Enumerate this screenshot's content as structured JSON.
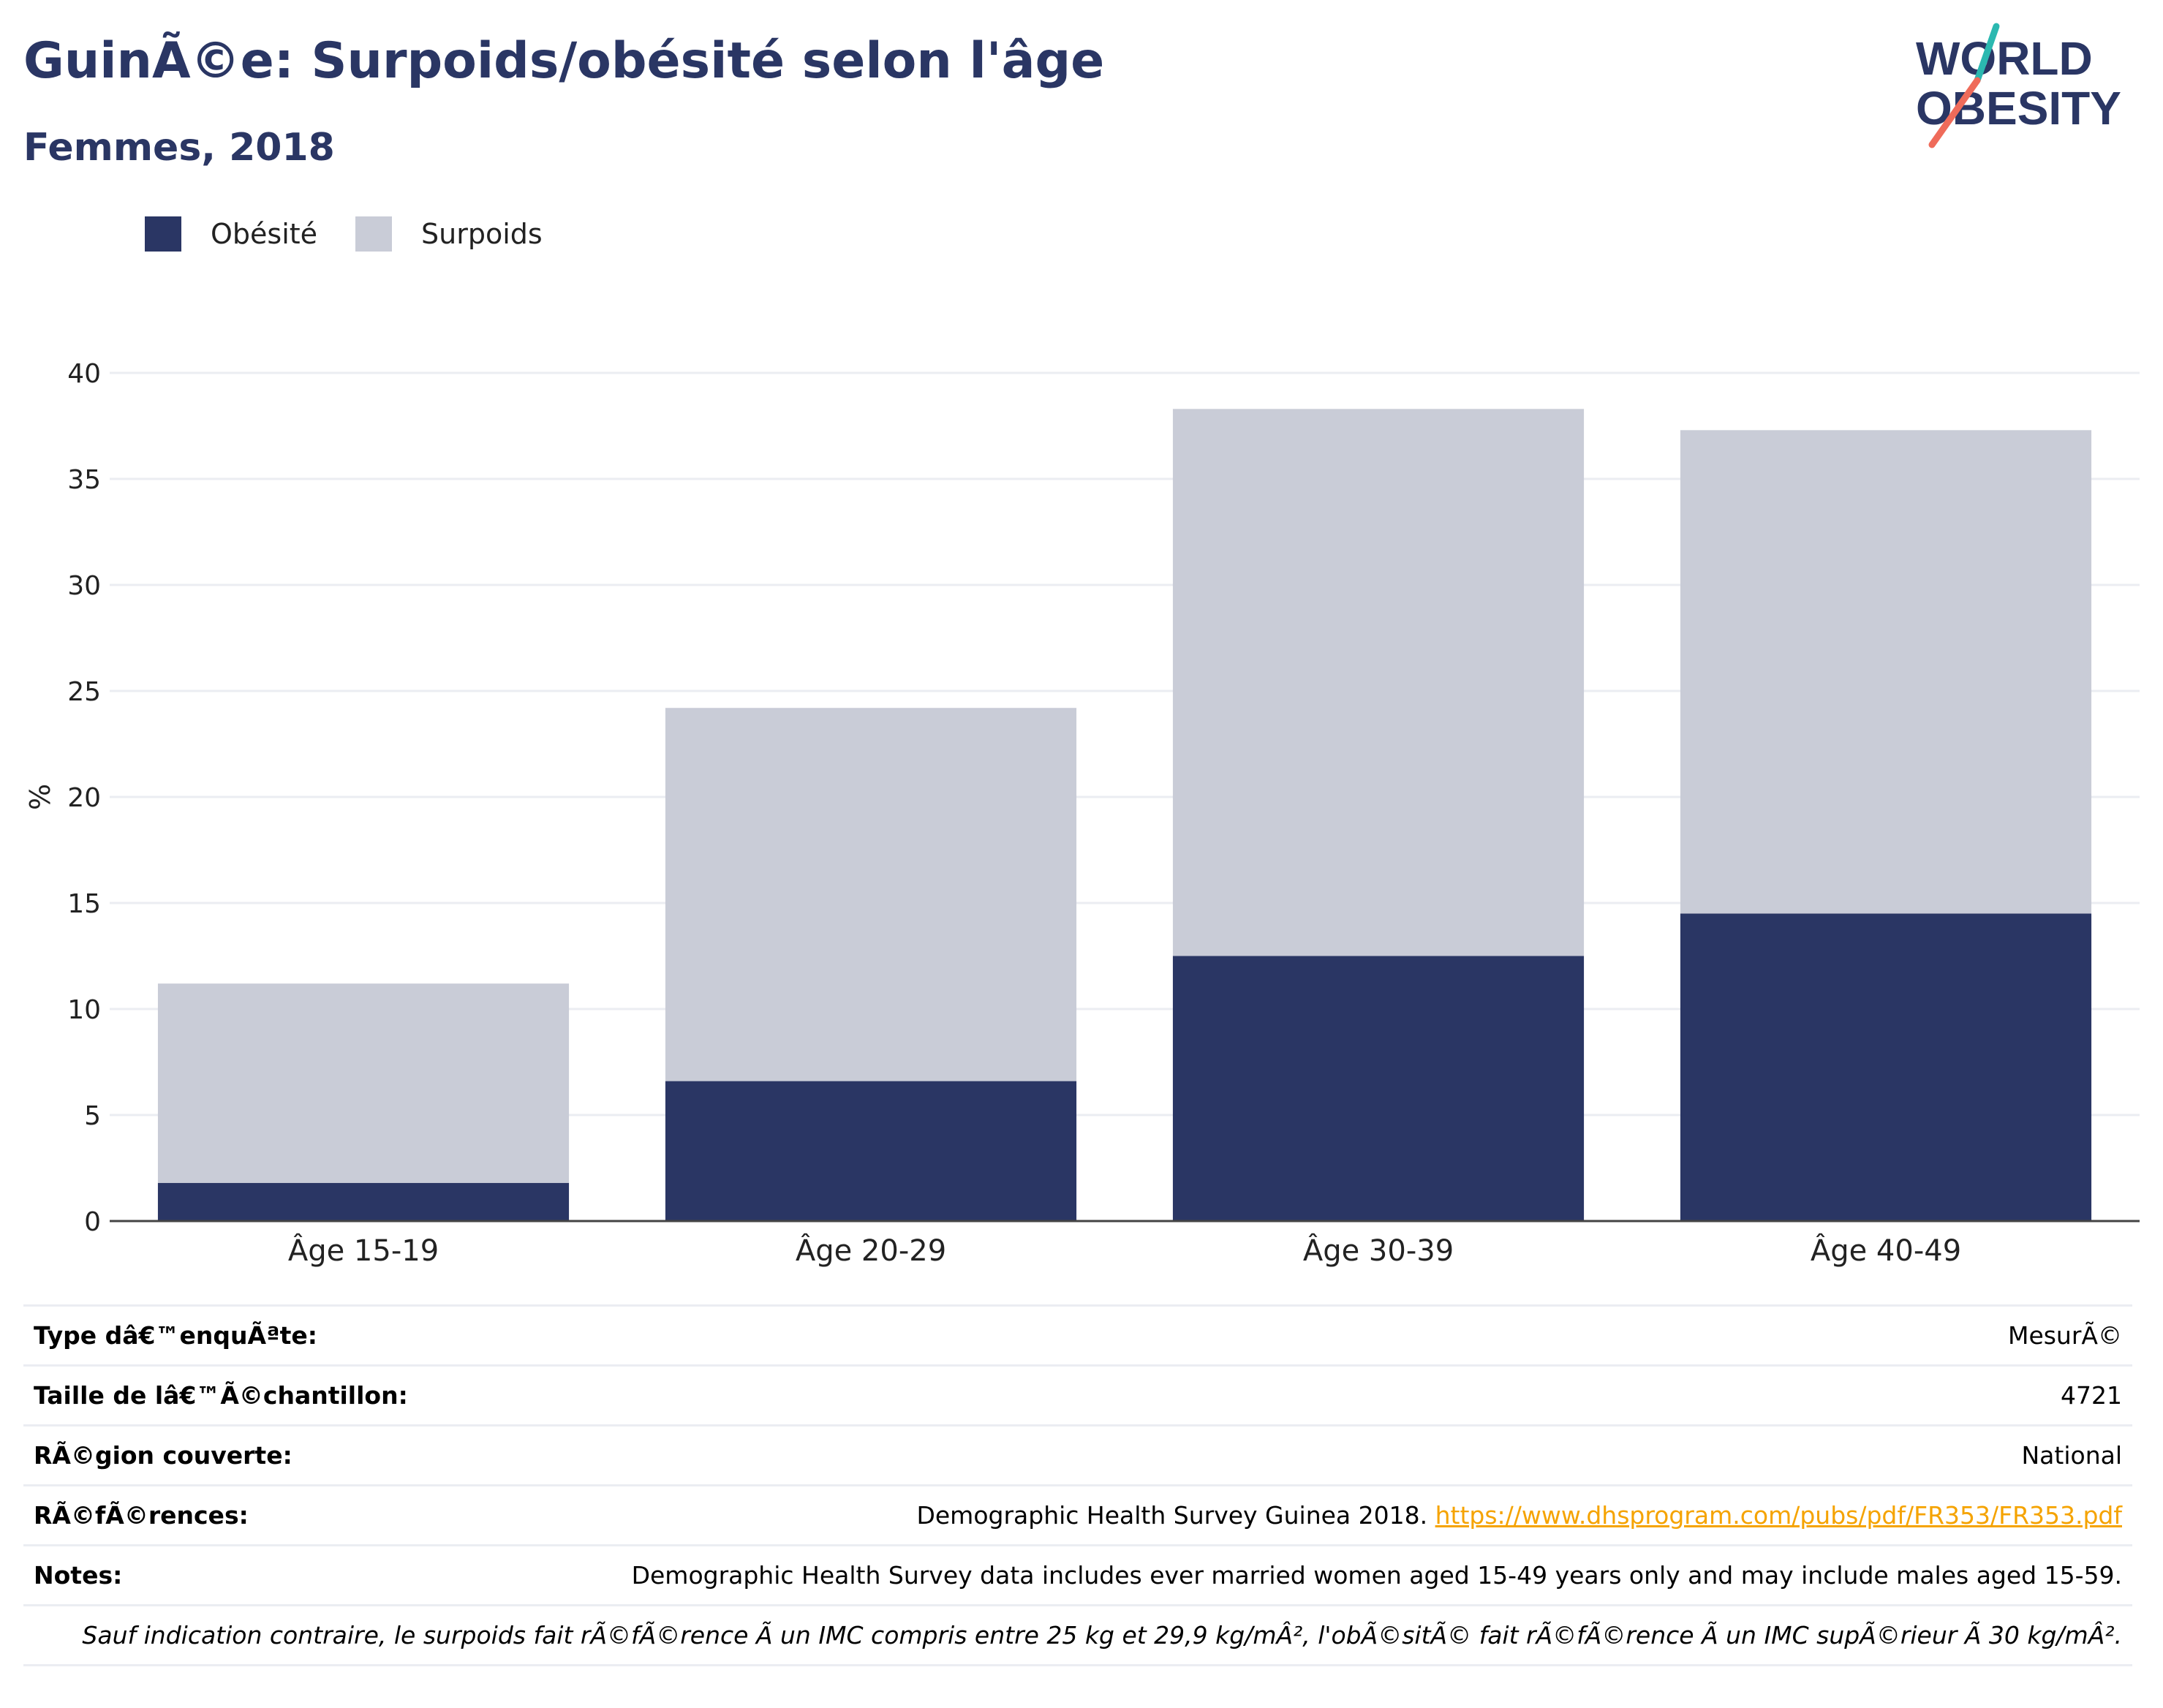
{
  "header": {
    "title": "GuinÃ©e: Surpoids/obésité selon l'âge",
    "subtitle": "Femmes, 2018"
  },
  "logo": {
    "line1": "WORLD",
    "line2": "OBESITY"
  },
  "colors": {
    "obesity": "#2a3664",
    "overweight": "#c9ccd7",
    "title": "#2a3664",
    "link": "#f5a300"
  },
  "legend": [
    {
      "label": "Obésité",
      "color": "#2a3664"
    },
    {
      "label": "Surpoids",
      "color": "#c9ccd7"
    }
  ],
  "chart_data": {
    "type": "bar",
    "stacked": true,
    "categories": [
      "Âge 15-19",
      "Âge 20-29",
      "Âge 30-39",
      "Âge 40-49"
    ],
    "series": [
      {
        "name": "Obésité",
        "values": [
          1.8,
          6.6,
          12.5,
          14.5
        ]
      },
      {
        "name": "Surpoids",
        "values": [
          9.4,
          17.6,
          25.8,
          22.8
        ]
      }
    ],
    "ylabel": "%",
    "ylim": [
      0,
      40
    ],
    "yticks": [
      0,
      5,
      10,
      15,
      20,
      25,
      30,
      35,
      40
    ],
    "grid": true,
    "legend_position": "top-left"
  },
  "info": {
    "rows": [
      {
        "label": "Type dâ€™enquÃªte:",
        "value": "MesurÃ©"
      },
      {
        "label": "Taille de lâ€™Ã©chantillon:",
        "value": "4721"
      },
      {
        "label": "RÃ©gion couverte:",
        "value": "National"
      },
      {
        "label": "RÃ©fÃ©rences:",
        "value": "Demographic Health Survey Guinea 2018.",
        "link": "https://www.dhsprogram.com/pubs/pdf/FR353/FR353.pdf"
      },
      {
        "label": "Notes:",
        "value": "Demographic Health Survey data includes ever married women aged 15-49 years only and may include males aged 15-59."
      }
    ],
    "footnote": "Sauf indication contraire, le surpoids fait rÃ©fÃ©rence Ã  un IMC compris entre 25 kg et 29,9 kg/mÂ², l'obÃ©sitÃ© fait rÃ©fÃ©rence Ã  un IMC supÃ©rieur Ã  30 kg/mÂ²."
  }
}
